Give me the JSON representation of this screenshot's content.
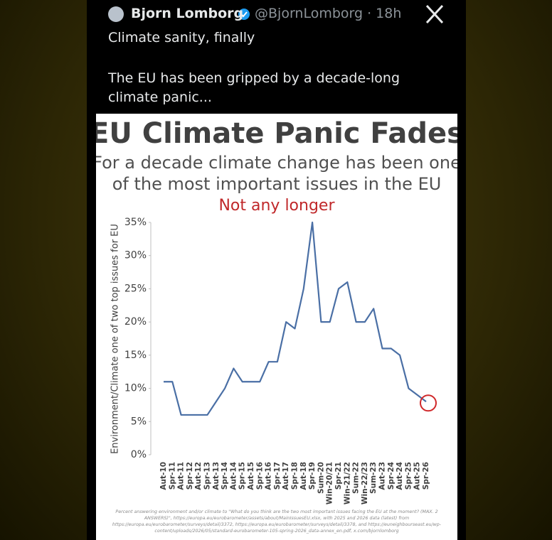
{
  "tweet": {
    "name": "Bjorn Lomborg",
    "meta": "@BjornLomborg · 18h",
    "lines": [
      "Climate sanity, finally",
      "The EU has been gripped by a decade-long climate panic..."
    ]
  },
  "chart_data": {
    "type": "line",
    "title": "EU Climate Panic Fades",
    "subtitle": [
      "For a decade climate change has been one",
      "of the most important issues in the EU"
    ],
    "annotation": "Not any longer",
    "y_label": "Environment/Climate one of two top issues for EU",
    "categories": [
      "Aut-10",
      "Spr-11",
      "Aut-11",
      "Spr-12",
      "Aut-12",
      "Spr-13",
      "Aut-13",
      "Spr-14",
      "Aut-14",
      "Spr-15",
      "Aut-15",
      "Spr-16",
      "Aut-16",
      "Spr-17",
      "Aut-17",
      "Spr-18",
      "Aut-18",
      "Spr-19",
      "Sum-20",
      "Win-20/21",
      "Spr-21",
      "Win-21/22",
      "Sum-22",
      "Win-22/23",
      "Sum-23",
      "Aut-23",
      "Spr-24",
      "Aut-24",
      "Spr-25",
      "Aut-25",
      "Spr-26"
    ],
    "values": [
      11,
      11,
      6,
      6,
      6,
      6,
      8,
      10,
      13,
      11,
      11,
      11,
      14,
      14,
      20,
      19,
      25,
      35,
      20,
      20,
      25,
      26,
      20,
      20,
      22,
      16,
      16,
      15,
      10,
      9,
      8
    ],
    "color": "#4a6fa5",
    "ylim": [
      0,
      35
    ],
    "yticks": [
      {
        "value": 0,
        "label": "0%"
      },
      {
        "value": 5,
        "label": "5%"
      },
      {
        "value": 10,
        "label": "10%"
      },
      {
        "value": 15,
        "label": "15%"
      },
      {
        "value": 20,
        "label": "20%"
      },
      {
        "value": 25,
        "label": "25%"
      },
      {
        "value": 30,
        "label": "30%"
      },
      {
        "value": 35,
        "label": "35%"
      }
    ],
    "footnote": "Percent answering environment and/or climate to \"What do you think are the two most important issues facing the EU at the moment? (MAX. 2 ANSWERS)\", https://europa.eu/eurobarometer/assets/about/MainIssuesEU.xlsx, with 2025 and 2026 data (latest) from https://europa.eu/eurobarometer/surveys/detail/3372, https://europa.eu/eurobarometer/surveys/detail/3378, and https://euneighbourseast.eu/wp-content/uploads/2026/05/standard-eurobarometer-105-spring-2026_data-annex_en.pdf, x.com/bjornlomborg"
  }
}
